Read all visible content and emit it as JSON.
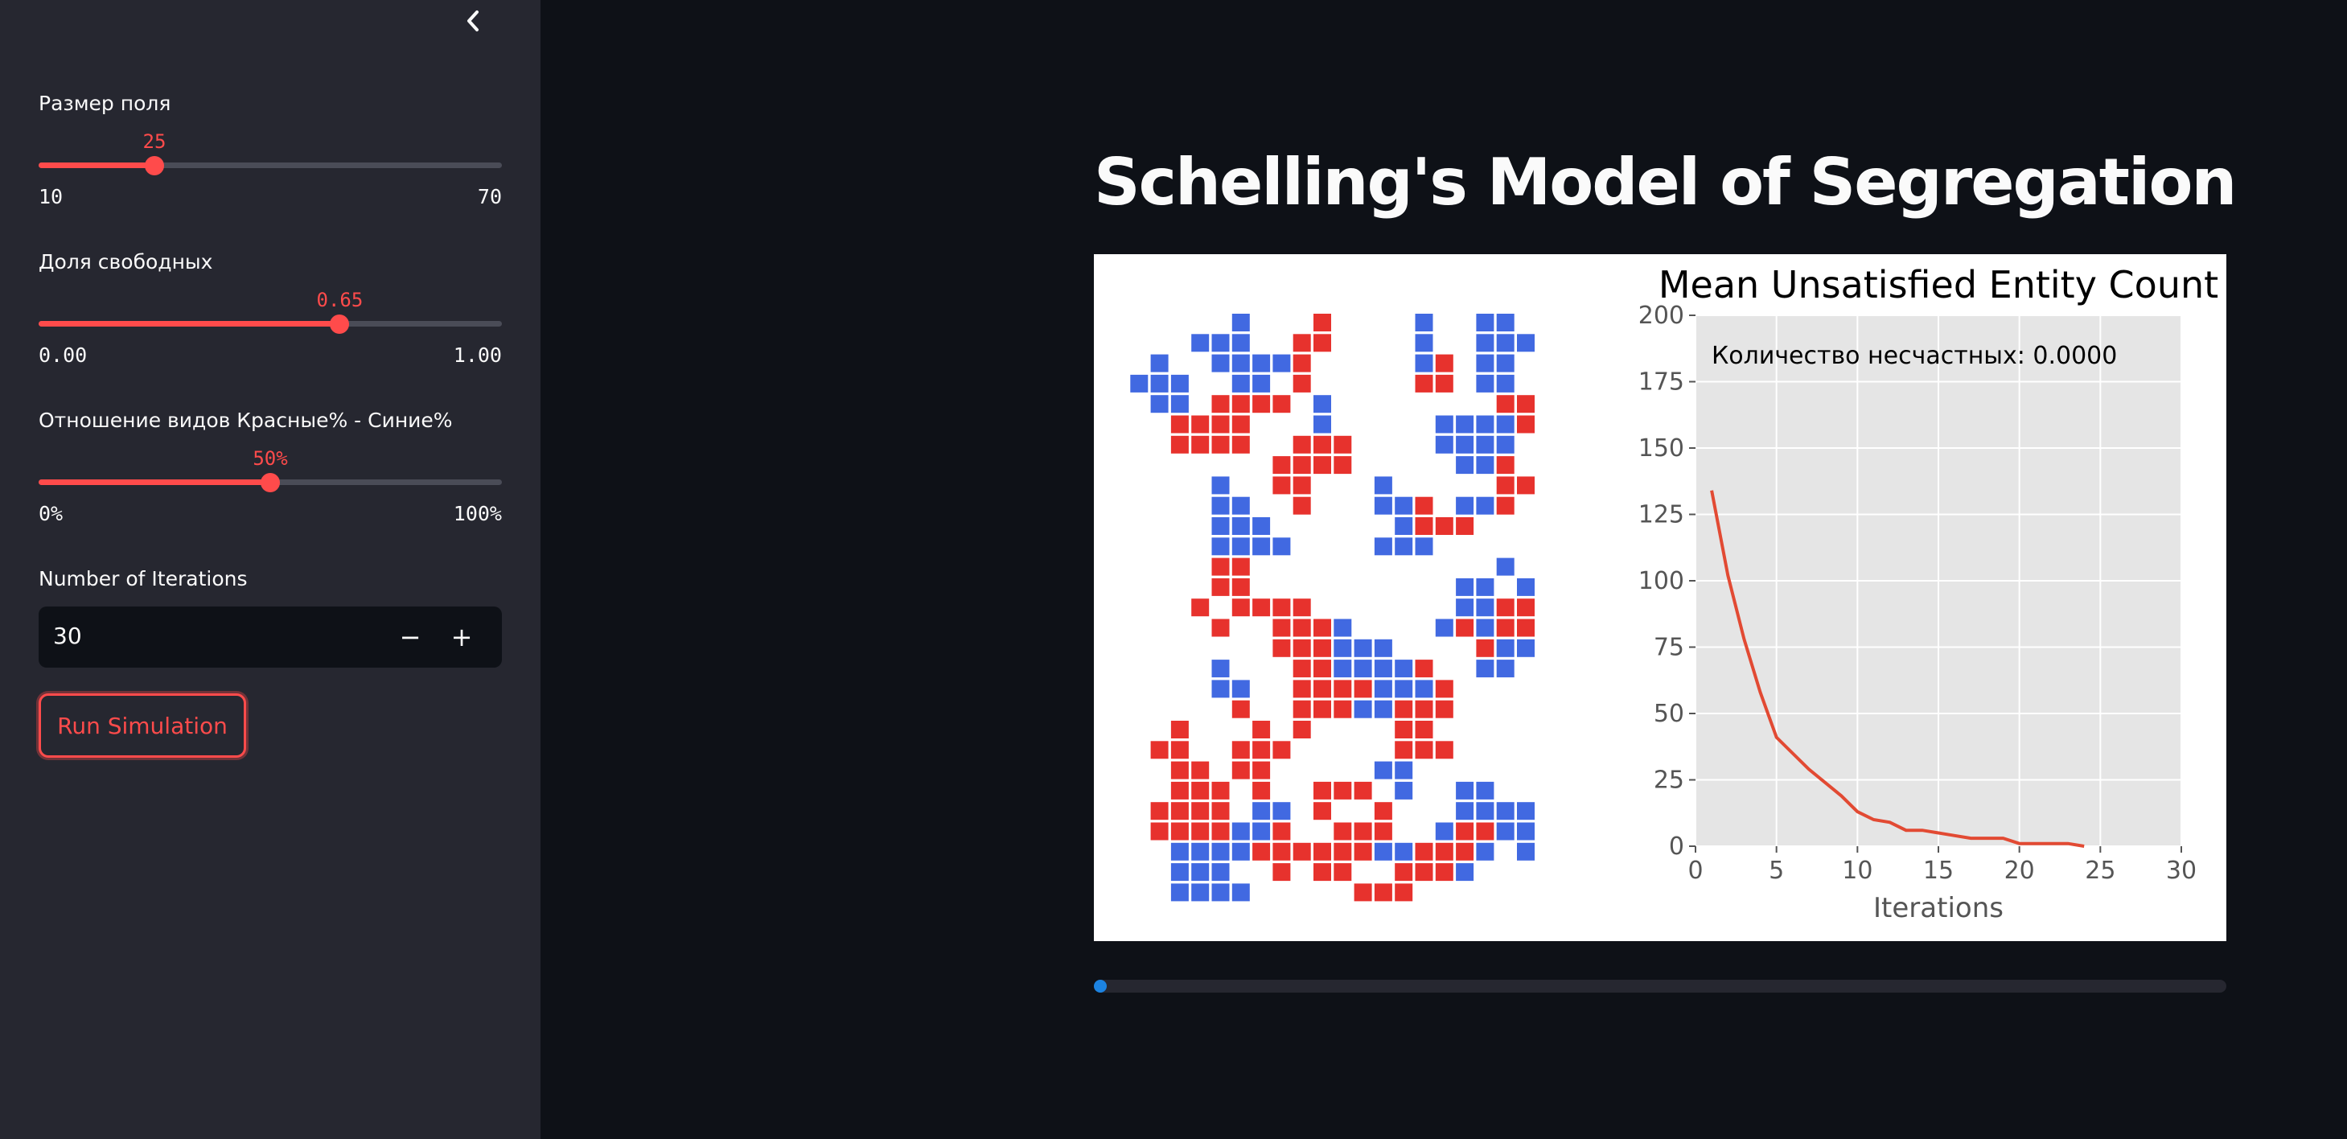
{
  "sidebar": {
    "sliders": [
      {
        "label": "Размер поля",
        "value_text": "25",
        "value": 25,
        "min": 10,
        "max": 70,
        "min_text": "10",
        "max_text": "70"
      },
      {
        "label": "Доля свободных",
        "value_text": "0.65",
        "value": 0.65,
        "min": 0,
        "max": 1,
        "min_text": "0.00",
        "max_text": "1.00"
      },
      {
        "label": "Отношение видов Красные% - Синие%",
        "value_text": "50%",
        "value": 50,
        "min": 0,
        "max": 100,
        "min_text": "0%",
        "max_text": "100%"
      }
    ],
    "iterations": {
      "label": "Number of Iterations",
      "value": "30",
      "minus": "−",
      "plus": "+"
    },
    "run_label": "Run Simulation"
  },
  "main": {
    "title": "Schelling's Model of Segregation",
    "progress": 0.0
  },
  "grid": {
    "colors": {
      "blue": "#4169e1",
      "red": "#e7322d"
    },
    "rows": [
      "......B...R....B..BB.",
      "....BBB..RR....B..BBB",
      "..B..BBBBR.....BR.BB.",
      ".BBB..BB.R.....RR.BB.",
      "..BB.RRRR.B........RR",
      "...RRRR...B.....BBBBR",
      "...RRRR..RRR....BBBB.",
      "........RRRR.....BBR.",
      ".....B..RR...B.....RR",
      ".....BB..R...BBR.BBR.",
      ".....BBB......BRRR...",
      ".....BBBB....BBB.....",
      ".....RR............B.",
      ".....RR..........BB.B",
      "....R.RRRR.......BBRR",
      ".....R..RRRB....BRBRR",
      "........RRRBBB....RBB",
      ".....B...RRBBBBR..BB.",
      ".....BB..RRRRBBBR....",
      "......R..RRRBBRRR....",
      "...R...R.R....RR.....",
      "..RR..RRR.....RRR....",
      "...RR.RR.....BB......",
      "...RRR.R..RRR.B..BB..",
      "..RRRR.BB.R..R...BBBB",
      "..RRRRBBR..RRR..BRRBB",
      "...BBBBRRRRRRBBRRRB.B",
      "...BBB..R.RR..RRRB...",
      "...BBBB.....RRR......"
    ]
  },
  "chart_data": {
    "type": "line",
    "title": "Mean Unsatisfied Entity Count",
    "xlabel": "Iterations",
    "ylabel": "",
    "xlim": [
      0,
      30
    ],
    "ylim": [
      0,
      200
    ],
    "xticks": [
      0,
      5,
      10,
      15,
      20,
      25,
      30
    ],
    "yticks": [
      0,
      25,
      50,
      75,
      100,
      125,
      150,
      175,
      200
    ],
    "grid": true,
    "annotation": "Количество несчастных: 0.0000",
    "series": [
      {
        "color": "#e24a33",
        "x": [
          1,
          2,
          3,
          4,
          5,
          6,
          7,
          8,
          9,
          10,
          11,
          12,
          13,
          14,
          15,
          16,
          17,
          18,
          19,
          20,
          21,
          22,
          23,
          24
        ],
        "y": [
          134,
          102,
          78,
          58,
          41,
          35,
          29,
          24,
          19,
          13,
          10,
          9,
          6,
          6,
          5,
          4,
          3,
          3,
          3,
          1,
          1,
          1,
          1,
          0
        ]
      }
    ]
  }
}
